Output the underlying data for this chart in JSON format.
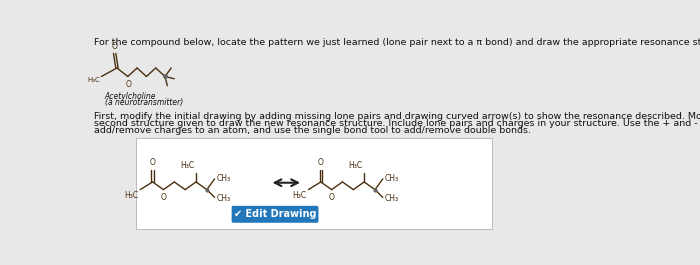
{
  "title_text": "For the compound below, locate the pattern we just learned (lone pair next to a π bond) and draw the appropriate resonance structure.",
  "body_text1": "First, modify the initial drawing by adding missing lone pairs and drawing curved arrow(s) to show the resonance described. Modify the",
  "body_text2": "second structure given to draw the new resonance structure. Include lone pairs and charges in your structure. Use the + and - tools to",
  "body_text3": "add/remove charges to an atom, and use the single bond tool to add/remove double bonds.",
  "molecule_label1": "Acetylcholine",
  "molecule_label2": "(a neurotransmitter)",
  "edit_button_text": "✔ Edit Drawing",
  "bg_color": "#e8e8e8",
  "panel_bg": "#ffffff",
  "button_color": "#2277bb",
  "text_color": "#111111",
  "bond_color": "#4a3010",
  "panel_box_color": "#bbbbbb",
  "fontsize_title": 6.8,
  "fontsize_body": 6.8,
  "fontsize_label": 5.5
}
